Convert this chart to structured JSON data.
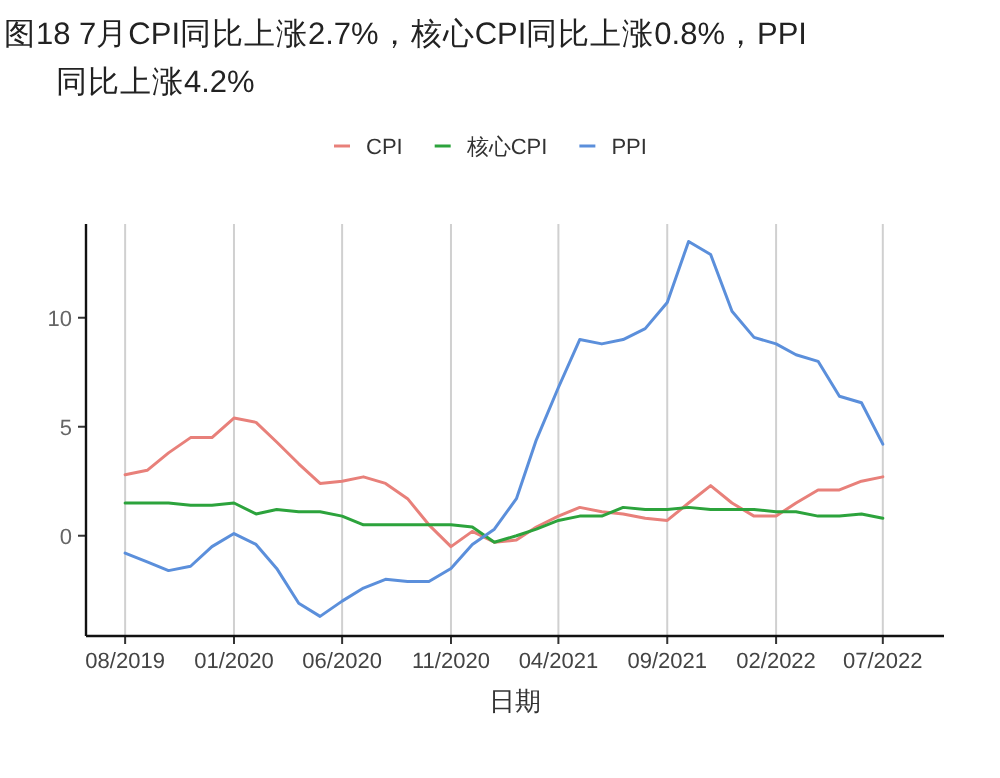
{
  "chart_data": {
    "type": "line",
    "title": "图18 7月CPI同比上涨2.7%，核心CPI同比上涨0.8%，PPI同比上涨4.2%",
    "xlabel": "日期",
    "x": [
      "2019-08",
      "2019-09",
      "2019-10",
      "2019-11",
      "2019-12",
      "2020-01",
      "2020-02",
      "2020-03",
      "2020-04",
      "2020-05",
      "2020-06",
      "2020-07",
      "2020-08",
      "2020-09",
      "2020-10",
      "2020-11",
      "2020-12",
      "2021-01",
      "2021-02",
      "2021-03",
      "2021-04",
      "2021-05",
      "2021-06",
      "2021-07",
      "2021-08",
      "2021-09",
      "2021-10",
      "2021-11",
      "2021-12",
      "2022-01",
      "2022-02",
      "2022-03",
      "2022-04",
      "2022-05",
      "2022-06",
      "2022-07"
    ],
    "series": [
      {
        "name": "CPI",
        "color": "#e8807a",
        "values": [
          2.8,
          3.0,
          3.8,
          4.5,
          4.5,
          5.4,
          5.2,
          4.3,
          3.3,
          2.4,
          2.5,
          2.7,
          2.4,
          1.7,
          0.5,
          -0.5,
          0.2,
          -0.3,
          -0.2,
          0.4,
          0.9,
          1.3,
          1.1,
          1.0,
          0.8,
          0.7,
          1.5,
          2.3,
          1.5,
          0.9,
          0.9,
          1.5,
          2.1,
          2.1,
          2.5,
          2.7
        ]
      },
      {
        "name": "核心CPI",
        "color": "#2ca33c",
        "values": [
          1.5,
          1.5,
          1.5,
          1.4,
          1.4,
          1.5,
          1.0,
          1.2,
          1.1,
          1.1,
          0.9,
          0.5,
          0.5,
          0.5,
          0.5,
          0.5,
          0.4,
          -0.3,
          0.0,
          0.3,
          0.7,
          0.9,
          0.9,
          1.3,
          1.2,
          1.2,
          1.3,
          1.2,
          1.2,
          1.2,
          1.1,
          1.1,
          0.9,
          0.9,
          1.0,
          0.8
        ]
      },
      {
        "name": "PPI",
        "color": "#5b8fdb",
        "values": [
          -0.8,
          -1.2,
          -1.6,
          -1.4,
          -0.5,
          0.1,
          -0.4,
          -1.5,
          -3.1,
          -3.7,
          -3.0,
          -2.4,
          -2.0,
          -2.1,
          -2.1,
          -1.5,
          -0.4,
          0.3,
          1.7,
          4.4,
          6.8,
          9.0,
          8.8,
          9.0,
          9.5,
          10.7,
          13.5,
          12.9,
          10.3,
          9.1,
          8.8,
          8.3,
          8.0,
          6.4,
          6.1,
          4.2
        ]
      }
    ],
    "xlim": [
      "2019-06-07",
      "2022-09-25"
    ],
    "xticks": [
      {
        "value": "2019-08",
        "label": "08/2019"
      },
      {
        "value": "2020-01",
        "label": "01/2020"
      },
      {
        "value": "2020-06",
        "label": "06/2020"
      },
      {
        "value": "2020-11",
        "label": "11/2020"
      },
      {
        "value": "2021-04",
        "label": "04/2021"
      },
      {
        "value": "2021-09",
        "label": "09/2021"
      },
      {
        "value": "2022-02",
        "label": "02/2022"
      },
      {
        "value": "2022-07",
        "label": "07/2022"
      }
    ],
    "ylim": [
      -4.6,
      14.3
    ],
    "yticks": [
      0,
      5,
      10
    ],
    "grid": "x",
    "legend": "top",
    "line_style": "solid"
  }
}
